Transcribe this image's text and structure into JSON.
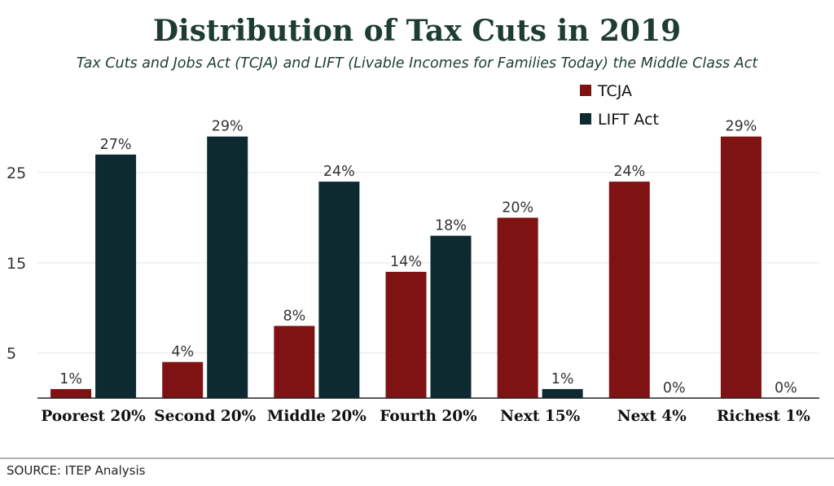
{
  "chart_data": {
    "type": "bar",
    "title": "Distribution of Tax Cuts in 2019",
    "subtitle": "Tax Cuts and Jobs Act (TCJA) and LIFT (Livable Incomes for Families Today) the Middle Class Act",
    "categories": [
      "Poorest 20%",
      "Second 20%",
      "Middle 20%",
      "Fourth 20%",
      "Next 15%",
      "Next 4%",
      "Richest 1%"
    ],
    "series": [
      {
        "name": "TCJA",
        "color": "#7f1212",
        "values": [
          1,
          4,
          8,
          14,
          20,
          24,
          29
        ],
        "labels": [
          "1%",
          "4%",
          "8%",
          "14%",
          "20%",
          "24%",
          "29%"
        ]
      },
      {
        "name": "LIFT Act",
        "color": "#0d2a30",
        "values": [
          27,
          29,
          24,
          18,
          1,
          0,
          0
        ],
        "labels": [
          "27%",
          "29%",
          "24%",
          "18%",
          "1%",
          "0%",
          "0%"
        ]
      }
    ],
    "yticks": [
      5,
      15,
      25
    ],
    "ytick_labels": [
      "5",
      "15",
      "25"
    ],
    "ylim": [
      0,
      30.6
    ],
    "grid": true,
    "legend_position": "top-right",
    "source": "SOURCE: ITEP Analysis"
  }
}
